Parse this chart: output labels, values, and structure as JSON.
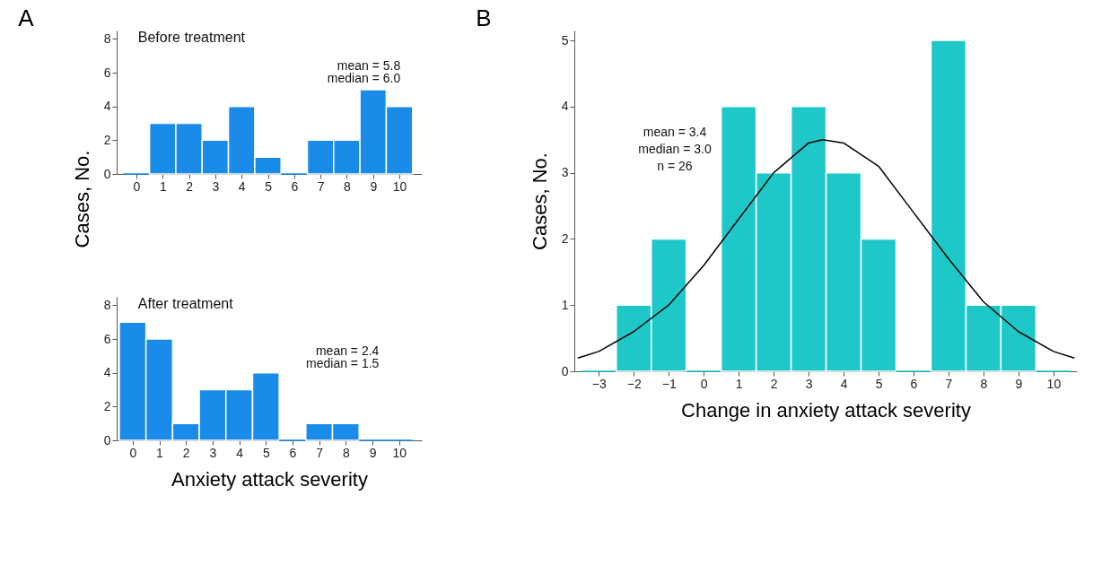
{
  "chart_data": [
    {
      "type": "bar",
      "title": "A",
      "ylabel": "Cases, No.",
      "annotations": [
        "Before treatment",
        "mean =  5.8",
        "median = 6.0"
      ],
      "x": [
        0,
        1,
        2,
        3,
        4,
        5,
        6,
        7,
        8,
        9,
        10
      ],
      "values": [
        0,
        3,
        3,
        2,
        4,
        1,
        0,
        2,
        2,
        5,
        4
      ],
      "color": "#1a8be8",
      "xlim": [
        -0.75,
        10.85
      ],
      "xticks": [
        0,
        1,
        2,
        3,
        4,
        5,
        6,
        7,
        8,
        9,
        10
      ],
      "ylim": [
        0,
        8.5
      ],
      "yticks": [
        0,
        2,
        4,
        6,
        8
      ],
      "grid": false
    },
    {
      "type": "bar",
      "xlabel": "Anxiety attack severity",
      "annotations": [
        "After treatment",
        "mean = 2.4",
        "median = 1.5"
      ],
      "x": [
        0,
        1,
        2,
        3,
        4,
        5,
        6,
        7,
        8,
        9,
        10
      ],
      "values": [
        7,
        6,
        1,
        3,
        3,
        4,
        0,
        1,
        1,
        0,
        0
      ],
      "color": "#1a8be8",
      "xlim": [
        -0.6,
        10.85
      ],
      "xticks": [
        0,
        1,
        2,
        3,
        4,
        5,
        6,
        7,
        8,
        9,
        10
      ],
      "ylim": [
        0,
        8.5
      ],
      "yticks": [
        0,
        2,
        4,
        6,
        8
      ],
      "grid": false
    },
    {
      "type": "bar",
      "title": "B",
      "xlabel": "Change in anxiety attack severity",
      "ylabel": "Cases, No.",
      "annotations": [
        "mean = 3.4",
        "median = 3.0",
        "n = 26"
      ],
      "x": [
        -3,
        -2,
        -1,
        0,
        1,
        2,
        3,
        4,
        5,
        6,
        7,
        8,
        9,
        10
      ],
      "values": [
        0,
        1,
        2,
        0,
        4,
        3,
        4,
        3,
        2,
        0,
        5,
        1,
        1,
        0
      ],
      "color": "#1fc8c8",
      "xlim": [
        -3.7,
        10.67
      ],
      "xticks": [
        -3,
        -2,
        -1,
        0,
        1,
        2,
        3,
        4,
        5,
        6,
        7,
        8,
        9,
        10
      ],
      "ylim": [
        0,
        5.15
      ],
      "yticks": [
        0,
        1,
        2,
        3,
        4,
        5
      ],
      "grid": false,
      "series": [
        {
          "type": "line",
          "color": "#000000",
          "x": [
            -3.6,
            -3,
            -2,
            -1,
            0,
            1,
            2,
            3,
            3.4,
            4,
            5,
            6,
            7,
            8,
            9,
            10,
            10.6
          ],
          "values": [
            0.2,
            0.3,
            0.6,
            1.0,
            1.6,
            2.3,
            3.0,
            3.45,
            3.5,
            3.45,
            3.1,
            2.4,
            1.7,
            1.05,
            0.6,
            0.3,
            0.2
          ]
        }
      ]
    }
  ]
}
